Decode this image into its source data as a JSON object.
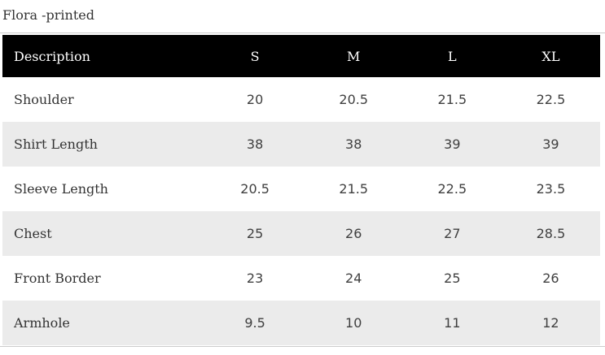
{
  "page": {
    "title": "Flora -printed"
  },
  "chart_data": {
    "type": "table",
    "title": "Flora -printed",
    "columns": [
      "Description",
      "S",
      "M",
      "L",
      "XL"
    ],
    "rows": [
      [
        "Shoulder",
        "20",
        "20.5",
        "21.5",
        "22.5"
      ],
      [
        "Shirt Length",
        "38",
        "38",
        "39",
        "39"
      ],
      [
        "Sleeve Length",
        "20.5",
        "21.5",
        "22.5",
        "23.5"
      ],
      [
        "Chest",
        "25",
        "26",
        "27",
        "28.5"
      ],
      [
        "Front Border",
        "23",
        "24",
        "25",
        "26"
      ],
      [
        "Armhole",
        "9.5",
        "10",
        "11",
        "12"
      ]
    ],
    "layout": {
      "header_bg": "#000000",
      "header_text_color": "#ffffff",
      "alt_row_bg": "#ebebeb",
      "zebra_pattern": "even-data-rows-gray",
      "divider_color": "#cbcbcb",
      "label_column_align": "left",
      "size_columns_align": "center"
    }
  }
}
